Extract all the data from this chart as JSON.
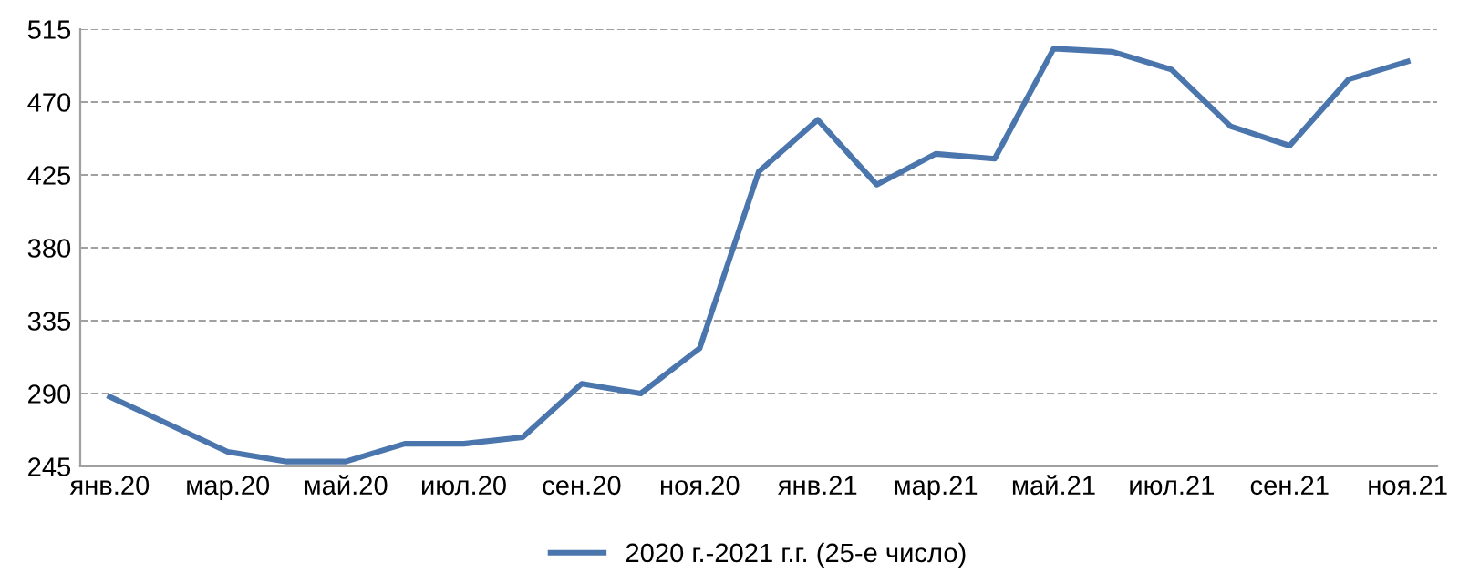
{
  "chart_data": {
    "type": "line",
    "categories": [
      "янв.20",
      null,
      "мар.20",
      null,
      "май.20",
      null,
      "июл.20",
      null,
      "сен.20",
      null,
      "ноя.20",
      null,
      "янв.21",
      null,
      "мар.21",
      null,
      "май.21",
      null,
      "июл.21",
      null,
      "сен.21",
      null,
      "ноя.21"
    ],
    "series": [
      {
        "name": "2020 г.-2021 г.г. (25-е число)",
        "color": "#4a76ad",
        "values": [
          288,
          271,
          254,
          248,
          248,
          259,
          259,
          263,
          296,
          290,
          318,
          427,
          459,
          419,
          438,
          435,
          503,
          501,
          490,
          455,
          443,
          484,
          495
        ]
      }
    ],
    "ylim": [
      245,
      515
    ],
    "yticks": [
      245,
      290,
      335,
      380,
      425,
      470,
      515
    ],
    "grid": "y",
    "legend": "bottom",
    "marker": "none",
    "line_style": "solid"
  }
}
